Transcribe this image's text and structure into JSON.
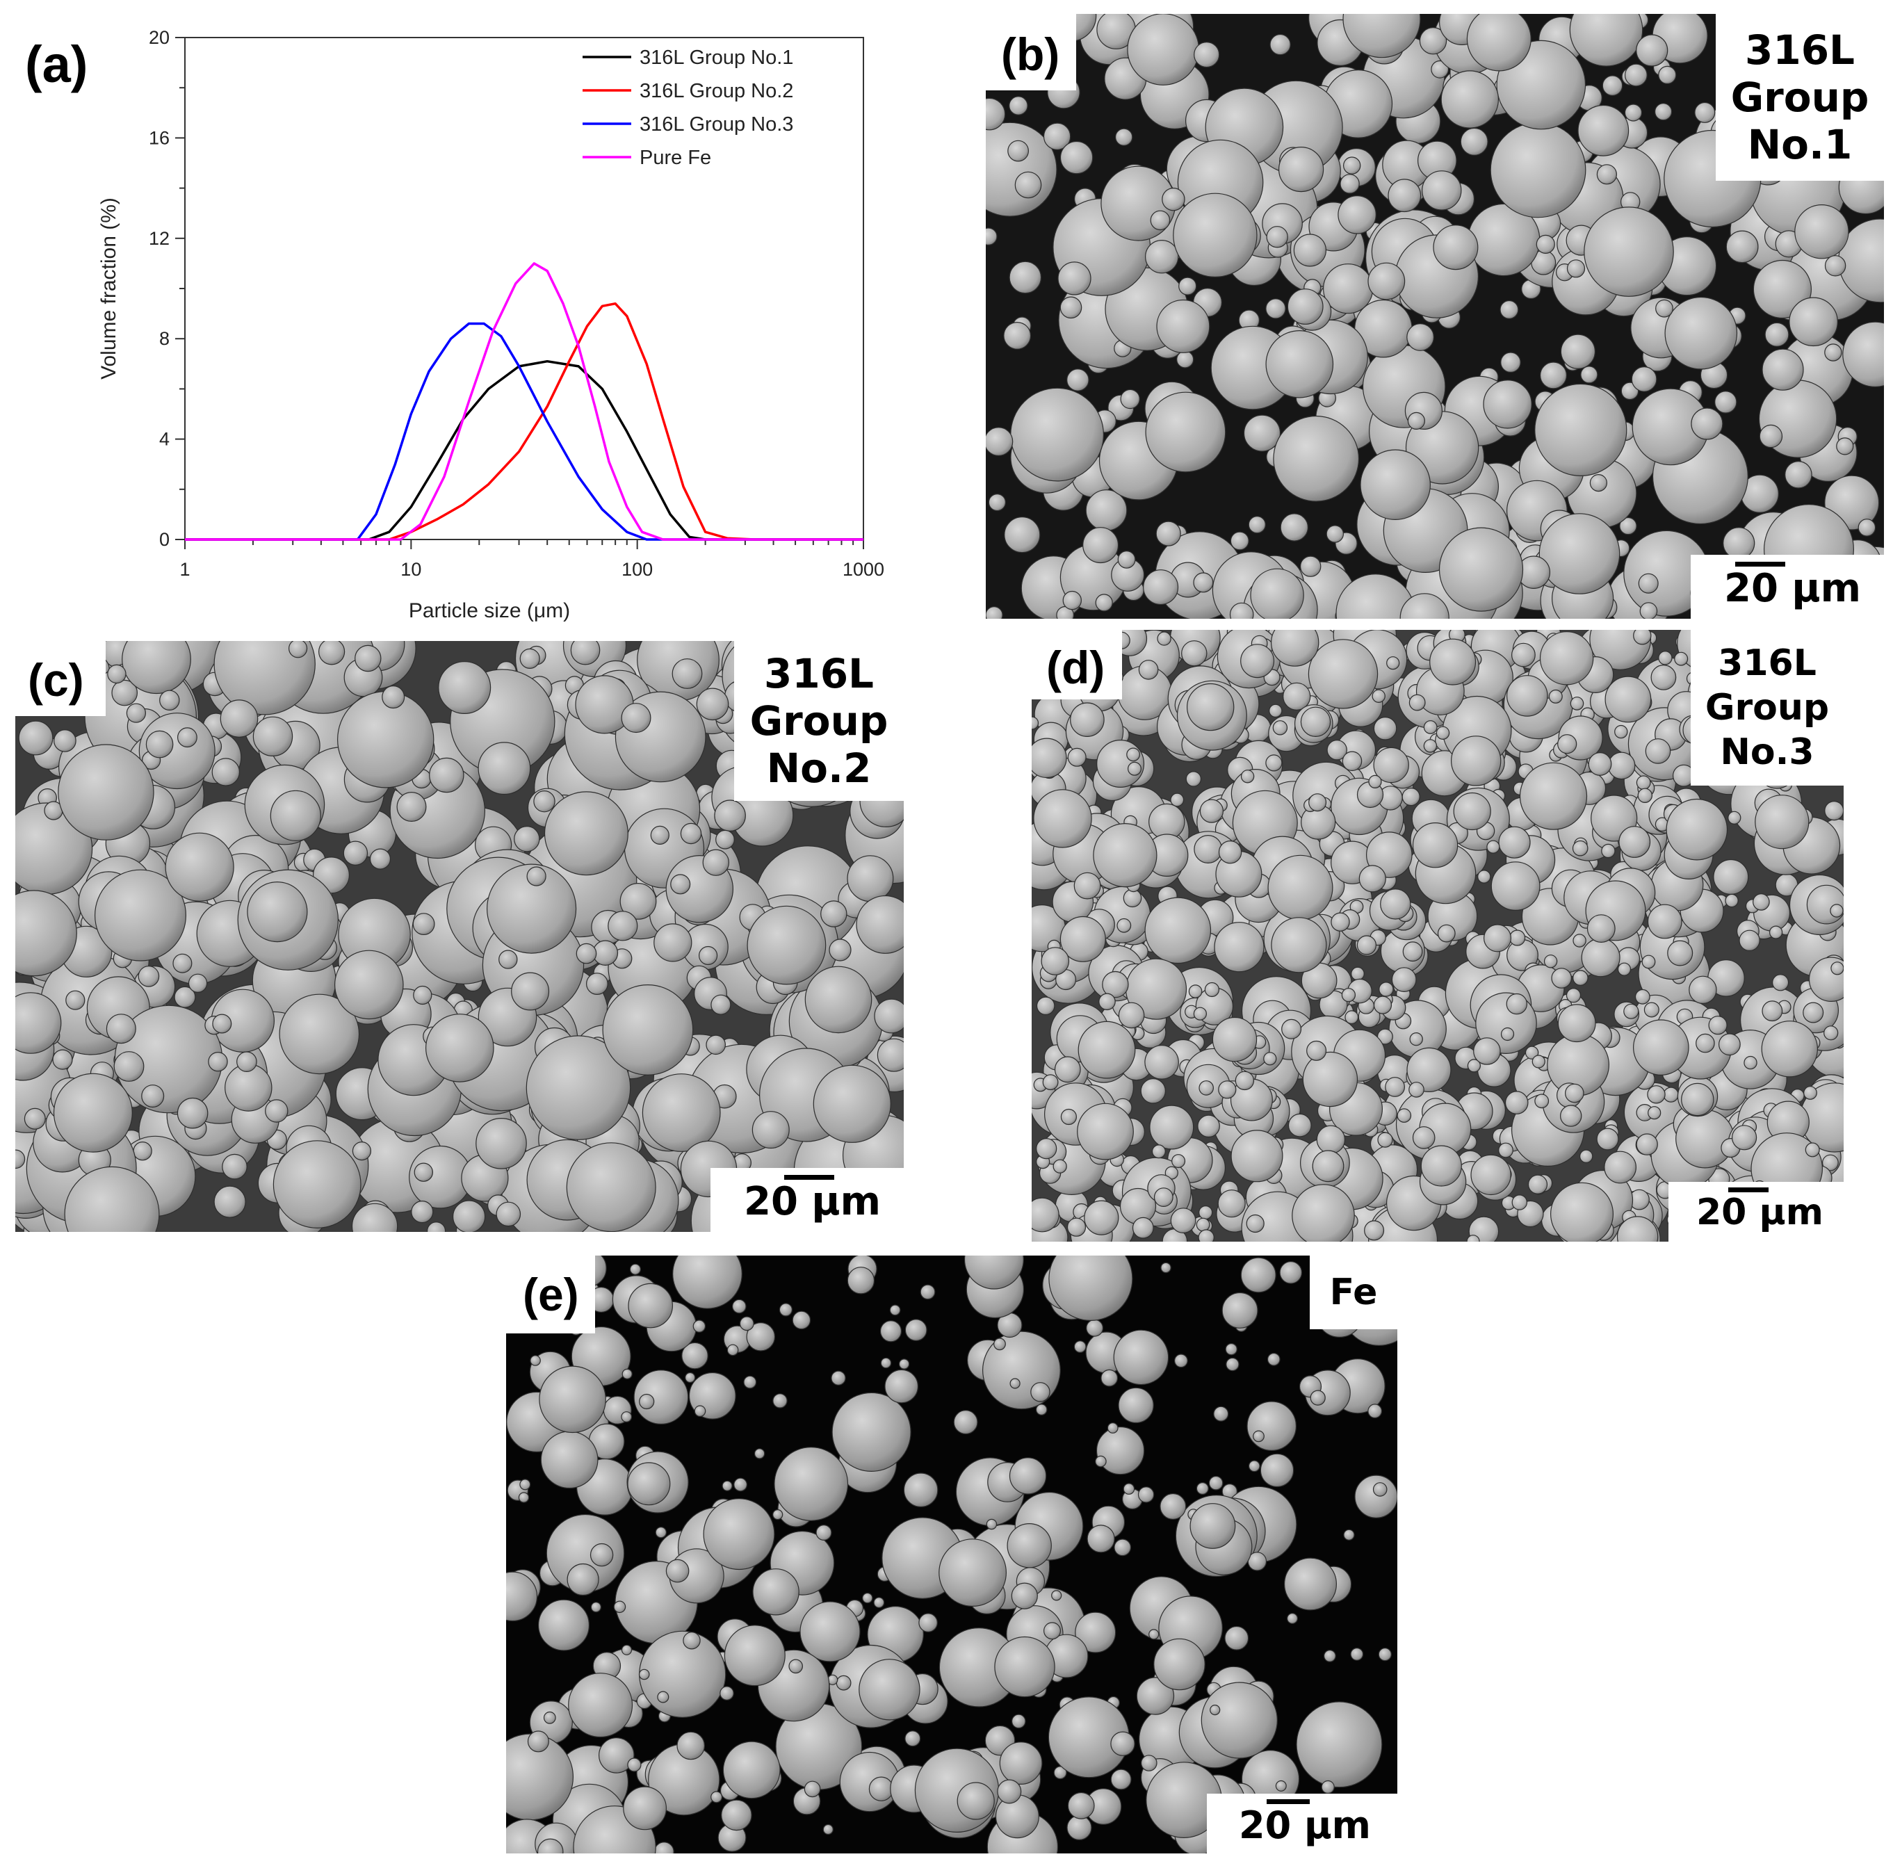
{
  "panels": {
    "a": {
      "letter": "(a)"
    },
    "b": {
      "letter": "(b)",
      "label_lines": [
        "316L",
        "Group",
        "No.1"
      ],
      "scale": "20 μm"
    },
    "c": {
      "letter": "(c)",
      "label_lines": [
        "316L",
        "Group",
        "No.2"
      ],
      "scale": "20 μm"
    },
    "d": {
      "letter": "(d)",
      "label_lines": [
        "316L",
        "Group",
        "No.3"
      ],
      "scale": "20 μm"
    },
    "e": {
      "letter": "(e)",
      "label_lines": [
        "Fe"
      ],
      "scale": "20 μm"
    }
  },
  "chart_data": {
    "type": "line",
    "xlabel": "Particle size (μm)",
    "ylabel": "Volume fraction (%)",
    "xscale": "log",
    "xlim": [
      1,
      1000
    ],
    "ylim": [
      0,
      20
    ],
    "xticks": [
      "1",
      "10",
      "100",
      "1000"
    ],
    "yticks": [
      "0",
      "4",
      "8",
      "12",
      "16",
      "20"
    ],
    "legend_position": "top-right",
    "series": [
      {
        "name": "316L Group No.1",
        "color": "#000000",
        "x": [
          1,
          6.5,
          8,
          10,
          13,
          17,
          22,
          30,
          40,
          55,
          70,
          90,
          110,
          140,
          170,
          200,
          1000
        ],
        "y": [
          0,
          0,
          0.3,
          1.3,
          3.0,
          4.8,
          6.0,
          6.9,
          7.1,
          6.9,
          6.0,
          4.3,
          2.8,
          1.0,
          0.1,
          0,
          0
        ]
      },
      {
        "name": "316L Group No.2",
        "color": "#ff0000",
        "x": [
          1,
          8,
          10,
          13,
          17,
          22,
          30,
          40,
          50,
          60,
          70,
          80,
          90,
          110,
          130,
          160,
          200,
          250,
          330,
          1000
        ],
        "y": [
          0,
          0,
          0.3,
          0.8,
          1.4,
          2.2,
          3.5,
          5.3,
          7.1,
          8.5,
          9.3,
          9.4,
          8.9,
          7.0,
          4.8,
          2.1,
          0.3,
          0.05,
          0,
          0
        ]
      },
      {
        "name": "316L Group No.3",
        "color": "#0000ff",
        "x": [
          1,
          5.8,
          7,
          8.5,
          10,
          12,
          15,
          18,
          21,
          25,
          30,
          40,
          55,
          70,
          90,
          110,
          1000
        ],
        "y": [
          0,
          0,
          1.0,
          3.0,
          5.0,
          6.7,
          8.0,
          8.6,
          8.6,
          8.1,
          6.9,
          4.7,
          2.5,
          1.2,
          0.3,
          0,
          0
        ]
      },
      {
        "name": "Pure Fe",
        "color": "#ff00ff",
        "x": [
          1,
          9,
          11,
          14,
          18,
          23,
          29,
          35,
          40,
          47,
          55,
          65,
          75,
          90,
          105,
          130,
          1000
        ],
        "y": [
          0,
          0,
          0.6,
          2.5,
          5.5,
          8.3,
          10.2,
          11.0,
          10.7,
          9.4,
          7.7,
          5.3,
          3.1,
          1.3,
          0.3,
          0,
          0
        ]
      }
    ]
  }
}
